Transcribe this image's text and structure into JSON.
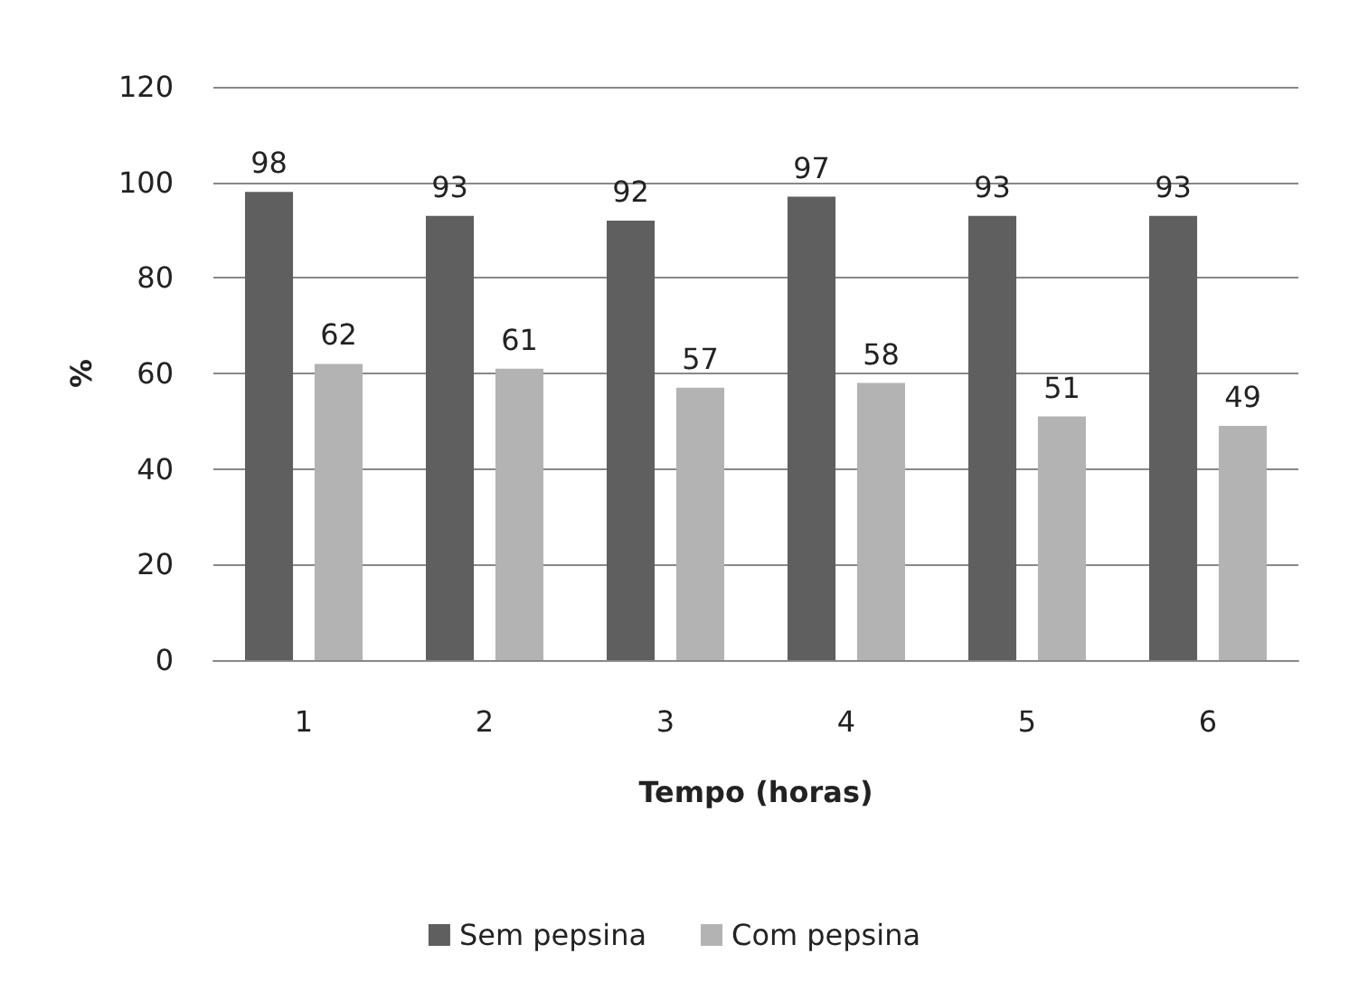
{
  "chart_data": {
    "type": "bar",
    "xlabel": "Tempo (horas)",
    "ylabel": "%",
    "categories": [
      "1",
      "2",
      "3",
      "4",
      "5",
      "6"
    ],
    "series": [
      {
        "name": "Sem pepsina",
        "color": "#5f5f5f",
        "values": [
          98,
          93,
          92,
          97,
          93,
          93
        ]
      },
      {
        "name": "Com pepsina",
        "color": "#b3b3b3",
        "values": [
          62,
          61,
          57,
          58,
          51,
          49
        ]
      }
    ],
    "ylim": [
      0,
      120
    ],
    "yticks": [
      0,
      20,
      40,
      60,
      80,
      100,
      120
    ],
    "grid": "y",
    "legend": "bottom",
    "data_labels": true
  }
}
